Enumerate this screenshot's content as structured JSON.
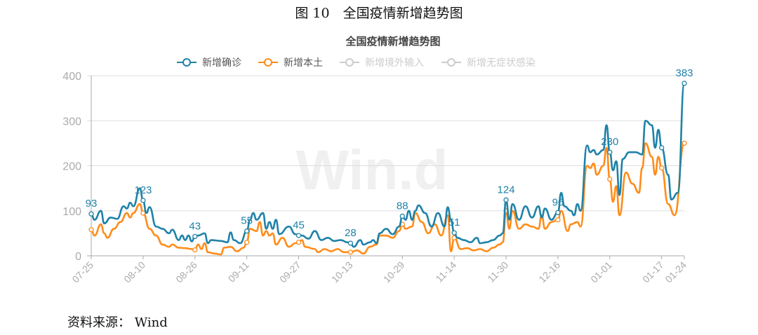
{
  "figure_caption": "图 10　全国疫情新增趋势图",
  "source": "资料来源： Wind",
  "chart_data": {
    "type": "line",
    "title": "全国疫情新增趋势图",
    "watermark": "Win.d",
    "ylim": [
      0,
      400
    ],
    "yticks": [
      0,
      100,
      200,
      300,
      400
    ],
    "xticks": [
      "07-25",
      "08-10",
      "08-26",
      "09-11",
      "09-27",
      "10-13",
      "10-29",
      "11-14",
      "11-30",
      "12-16",
      "01-01",
      "01-17",
      "01-24"
    ],
    "grid": true,
    "legend_placement": "top",
    "legend": [
      {
        "name": "新增确诊",
        "color": "#1f82a8",
        "active": true
      },
      {
        "name": "新增本土",
        "color": "#ff8c1a",
        "active": true
      },
      {
        "name": "新增境外输入",
        "color": "#cccccc",
        "active": false
      },
      {
        "name": "新增无症状感染",
        "color": "#cccccc",
        "active": false
      }
    ],
    "series": [
      {
        "name": "新增确诊",
        "color": "#1f82a8",
        "points": [
          [
            "07-25",
            93
          ],
          [
            "07-26",
            80
          ],
          [
            "07-28",
            100
          ],
          [
            "07-29",
            72
          ],
          [
            "07-31",
            85
          ],
          [
            "08-02",
            82
          ],
          [
            "08-04",
            110
          ],
          [
            "08-05",
            105
          ],
          [
            "08-06",
            118
          ],
          [
            "08-07",
            110
          ],
          [
            "08-09",
            150
          ],
          [
            "08-10",
            123
          ],
          [
            "08-11",
            95
          ],
          [
            "08-12",
            108
          ],
          [
            "08-14",
            65
          ],
          [
            "08-16",
            60
          ],
          [
            "08-18",
            50
          ],
          [
            "08-19",
            58
          ],
          [
            "08-21",
            35
          ],
          [
            "08-22",
            45
          ],
          [
            "08-23",
            35
          ],
          [
            "08-24",
            45
          ],
          [
            "08-25",
            32
          ],
          [
            "08-26",
            43
          ],
          [
            "08-27",
            45
          ],
          [
            "08-29",
            50
          ],
          [
            "08-30",
            28
          ],
          [
            "08-31",
            35
          ],
          [
            "09-03",
            33
          ],
          [
            "09-05",
            30
          ],
          [
            "09-06",
            52
          ],
          [
            "09-07",
            35
          ],
          [
            "09-09",
            28
          ],
          [
            "09-11",
            55
          ],
          [
            "09-12",
            80
          ],
          [
            "09-13",
            95
          ],
          [
            "09-14",
            80
          ],
          [
            "09-16",
            95
          ],
          [
            "09-17",
            60
          ],
          [
            "09-18",
            75
          ],
          [
            "09-19",
            60
          ],
          [
            "09-20",
            80
          ],
          [
            "09-21",
            48
          ],
          [
            "09-24",
            65
          ],
          [
            "09-26",
            48
          ],
          [
            "09-27",
            45
          ],
          [
            "09-28",
            45
          ],
          [
            "09-30",
            38
          ],
          [
            "10-02",
            55
          ],
          [
            "10-04",
            35
          ],
          [
            "10-06",
            40
          ],
          [
            "10-08",
            33
          ],
          [
            "10-10",
            35
          ],
          [
            "10-12",
            30
          ],
          [
            "10-13",
            28
          ],
          [
            "10-14",
            20
          ],
          [
            "10-16",
            35
          ],
          [
            "10-17",
            25
          ],
          [
            "10-19",
            30
          ],
          [
            "10-20",
            35
          ],
          [
            "10-21",
            28
          ],
          [
            "10-22",
            50
          ],
          [
            "10-24",
            60
          ],
          [
            "10-26",
            48
          ],
          [
            "10-28",
            65
          ],
          [
            "10-29",
            88
          ],
          [
            "10-30",
            80
          ],
          [
            "10-31",
            100
          ],
          [
            "11-01",
            80
          ],
          [
            "11-02",
            100
          ],
          [
            "11-03",
            112
          ],
          [
            "11-05",
            95
          ],
          [
            "11-07",
            65
          ],
          [
            "11-09",
            95
          ],
          [
            "11-11",
            65
          ],
          [
            "11-12",
            108
          ],
          [
            "11-13",
            80
          ],
          [
            "11-14",
            51
          ],
          [
            "11-15",
            40
          ],
          [
            "11-17",
            35
          ],
          [
            "11-19",
            30
          ],
          [
            "11-21",
            40
          ],
          [
            "11-22",
            28
          ],
          [
            "11-24",
            30
          ],
          [
            "11-26",
            35
          ],
          [
            "11-28",
            45
          ],
          [
            "11-29",
            50
          ],
          [
            "11-30",
            124
          ],
          [
            "12-01",
            80
          ],
          [
            "12-02",
            115
          ],
          [
            "12-04",
            80
          ],
          [
            "12-06",
            110
          ],
          [
            "12-08",
            85
          ],
          [
            "12-10",
            110
          ],
          [
            "12-11",
            85
          ],
          [
            "12-12",
            105
          ],
          [
            "12-14",
            80
          ],
          [
            "12-16",
            96
          ],
          [
            "12-17",
            140
          ],
          [
            "12-18",
            110
          ],
          [
            "12-20",
            100
          ],
          [
            "12-21",
            90
          ],
          [
            "12-22",
            115
          ],
          [
            "12-23",
            100
          ],
          [
            "12-25",
            245
          ],
          [
            "12-26",
            230
          ],
          [
            "12-27",
            235
          ],
          [
            "12-28",
            225
          ],
          [
            "12-30",
            235
          ],
          [
            "12-31",
            290
          ],
          [
            "01-01",
            230
          ],
          [
            "01-02",
            190
          ],
          [
            "01-03",
            210
          ],
          [
            "01-04",
            135
          ],
          [
            "01-05",
            215
          ],
          [
            "01-07",
            230
          ],
          [
            "01-09",
            230
          ],
          [
            "01-11",
            225
          ],
          [
            "01-12",
            300
          ],
          [
            "01-14",
            290
          ],
          [
            "01-15",
            240
          ],
          [
            "01-16",
            280
          ],
          [
            "01-17",
            240
          ],
          [
            "01-19",
            180
          ],
          [
            "01-20",
            125
          ],
          [
            "01-22",
            140
          ],
          [
            "01-24",
            383
          ]
        ],
        "markers": [
          "07-25",
          "08-10",
          "08-26",
          "09-11",
          "09-27",
          "10-13",
          "10-29",
          "11-14",
          "11-30",
          "12-16",
          "01-01",
          "01-17",
          "01-24"
        ],
        "labels": [
          [
            "07-25",
            "93"
          ],
          [
            "08-10",
            "123"
          ],
          [
            "08-26",
            "43"
          ],
          [
            "09-11",
            "55"
          ],
          [
            "09-27",
            "45"
          ],
          [
            "10-13",
            "28"
          ],
          [
            "10-29",
            "88"
          ],
          [
            "11-14",
            "51"
          ],
          [
            "11-30",
            "124"
          ],
          [
            "12-16",
            "96"
          ],
          [
            "01-01",
            "230"
          ],
          [
            "01-24",
            "383"
          ]
        ]
      },
      {
        "name": "新增本土",
        "color": "#ff8c1a",
        "points": [
          [
            "07-25",
            58
          ],
          [
            "07-26",
            45
          ],
          [
            "07-28",
            70
          ],
          [
            "07-29",
            50
          ],
          [
            "07-30",
            40
          ],
          [
            "08-01",
            60
          ],
          [
            "08-03",
            75
          ],
          [
            "08-05",
            95
          ],
          [
            "08-06",
            85
          ],
          [
            "08-07",
            95
          ],
          [
            "08-09",
            115
          ],
          [
            "08-10",
            95
          ],
          [
            "08-12",
            60
          ],
          [
            "08-14",
            45
          ],
          [
            "08-16",
            25
          ],
          [
            "08-18",
            20
          ],
          [
            "08-19",
            25
          ],
          [
            "08-21",
            18
          ],
          [
            "08-23",
            17
          ],
          [
            "08-25",
            15
          ],
          [
            "08-26",
            13
          ],
          [
            "08-27",
            25
          ],
          [
            "08-28",
            15
          ],
          [
            "08-29",
            28
          ],
          [
            "08-30",
            8
          ],
          [
            "09-01",
            5
          ],
          [
            "09-03",
            3
          ],
          [
            "09-04",
            18
          ],
          [
            "09-06",
            20
          ],
          [
            "09-08",
            10
          ],
          [
            "09-10",
            18
          ],
          [
            "09-11",
            30
          ],
          [
            "09-12",
            60
          ],
          [
            "09-14",
            55
          ],
          [
            "09-15",
            75
          ],
          [
            "09-16",
            45
          ],
          [
            "09-17",
            55
          ],
          [
            "09-18",
            45
          ],
          [
            "09-19",
            50
          ],
          [
            "09-20",
            25
          ],
          [
            "09-22",
            40
          ],
          [
            "09-24",
            20
          ],
          [
            "09-26",
            28
          ],
          [
            "09-27",
            30
          ],
          [
            "09-28",
            35
          ],
          [
            "09-29",
            20
          ],
          [
            "10-02",
            15
          ],
          [
            "10-03",
            8
          ],
          [
            "10-05",
            15
          ],
          [
            "10-07",
            10
          ],
          [
            "10-09",
            15
          ],
          [
            "10-11",
            8
          ],
          [
            "10-13",
            8
          ],
          [
            "10-15",
            12
          ],
          [
            "10-17",
            5
          ],
          [
            "10-19",
            20
          ],
          [
            "10-21",
            25
          ],
          [
            "10-22",
            45
          ],
          [
            "10-24",
            45
          ],
          [
            "10-26",
            40
          ],
          [
            "10-28",
            55
          ],
          [
            "10-29",
            70
          ],
          [
            "10-30",
            60
          ],
          [
            "11-01",
            65
          ],
          [
            "11-02",
            95
          ],
          [
            "11-04",
            75
          ],
          [
            "11-06",
            50
          ],
          [
            "11-08",
            70
          ],
          [
            "11-10",
            45
          ],
          [
            "11-12",
            90
          ],
          [
            "11-13",
            10
          ],
          [
            "11-14",
            40
          ],
          [
            "11-16",
            15
          ],
          [
            "11-18",
            17
          ],
          [
            "11-20",
            12
          ],
          [
            "11-22",
            15
          ],
          [
            "11-24",
            10
          ],
          [
            "11-26",
            18
          ],
          [
            "11-28",
            25
          ],
          [
            "11-29",
            30
          ],
          [
            "11-30",
            100
          ],
          [
            "12-01",
            60
          ],
          [
            "12-02",
            100
          ],
          [
            "12-04",
            60
          ],
          [
            "12-06",
            70
          ],
          [
            "12-08",
            65
          ],
          [
            "12-10",
            60
          ],
          [
            "12-11",
            90
          ],
          [
            "12-12",
            60
          ],
          [
            "12-14",
            75
          ],
          [
            "12-16",
            80
          ],
          [
            "12-17",
            100
          ],
          [
            "12-19",
            55
          ],
          [
            "12-20",
            70
          ],
          [
            "12-22",
            75
          ],
          [
            "12-23",
            65
          ],
          [
            "12-25",
            200
          ],
          [
            "12-26",
            195
          ],
          [
            "12-27",
            205
          ],
          [
            "12-28",
            180
          ],
          [
            "12-30",
            200
          ],
          [
            "12-31",
            240
          ],
          [
            "01-01",
            170
          ],
          [
            "01-02",
            120
          ],
          [
            "01-03",
            155
          ],
          [
            "01-04",
            90
          ],
          [
            "01-06",
            185
          ],
          [
            "01-08",
            160
          ],
          [
            "01-10",
            140
          ],
          [
            "01-11",
            195
          ],
          [
            "01-12",
            250
          ],
          [
            "01-14",
            220
          ],
          [
            "01-15",
            180
          ],
          [
            "01-16",
            220
          ],
          [
            "01-17",
            195
          ],
          [
            "01-19",
            115
          ],
          [
            "01-21",
            90
          ],
          [
            "01-24",
            250
          ]
        ],
        "markers": [
          "07-25",
          "08-10",
          "08-26",
          "09-11",
          "09-27",
          "10-13",
          "10-29",
          "11-14",
          "11-30",
          "12-16",
          "01-01",
          "01-17",
          "01-24"
        ],
        "labels": []
      }
    ]
  }
}
